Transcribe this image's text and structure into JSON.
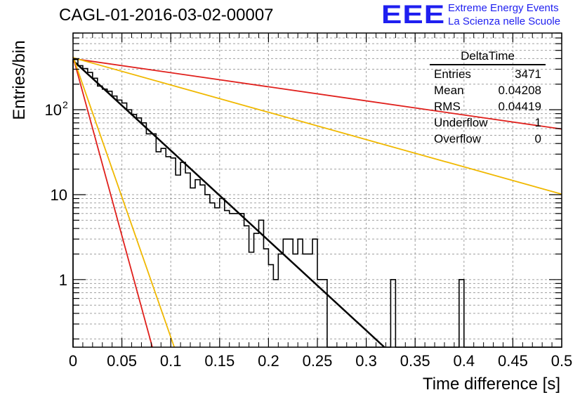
{
  "title": "CAGL-01-2016-03-02-00007",
  "logo": {
    "text": "EEE",
    "line1": "Extreme Energy Events",
    "line2": "La Scienza nelle Scuole",
    "color": "#1f1ff0"
  },
  "stats": {
    "name": "DeltaTime",
    "rows": [
      {
        "label": "Entries",
        "value": "3471"
      },
      {
        "label": "Mean",
        "value": "0.04208"
      },
      {
        "label": "RMS",
        "value": "0.04419"
      },
      {
        "label": "Underflow",
        "value": "1"
      },
      {
        "label": "Overflow",
        "value": "0"
      }
    ]
  },
  "chart_data": {
    "type": "line",
    "title": "CAGL-01-2016-03-02-00007",
    "xlabel": "Time difference [s]",
    "ylabel": "Entries/bin",
    "xlim": [
      0,
      0.5
    ],
    "ylim": [
      0.16,
      800
    ],
    "yscale": "log",
    "grid": true,
    "x_ticks": [
      "0",
      "0.05",
      "0.1",
      "0.15",
      "0.2",
      "0.25",
      "0.3",
      "0.35",
      "0.4",
      "0.45",
      "0.5"
    ],
    "y_ticks": [
      {
        "value": 1,
        "label": "1"
      },
      {
        "value": 10,
        "label": "10"
      },
      {
        "value": 100,
        "label": "10",
        "sup": "2"
      }
    ],
    "histogram": {
      "name": "DeltaTime",
      "bin_width": 0.005,
      "color": "#000000",
      "counts": [
        390,
        330,
        305,
        275,
        235,
        190,
        175,
        165,
        145,
        130,
        120,
        100,
        88,
        80,
        70,
        52,
        52,
        32,
        35,
        28,
        27,
        17,
        24,
        18,
        12,
        15,
        13,
        10,
        8,
        7,
        9,
        6.5,
        6,
        6,
        6,
        4.3,
        2.1,
        3.5,
        5,
        2.3,
        1.5,
        1,
        2,
        3,
        3,
        2,
        3,
        2,
        2,
        3,
        1,
        1,
        0,
        0,
        0,
        0,
        0,
        0,
        0,
        0,
        0,
        0,
        0,
        0,
        0,
        1,
        0,
        0,
        0,
        0,
        0,
        0,
        0,
        0,
        0,
        0,
        0,
        0,
        0,
        1,
        0,
        0,
        0,
        0,
        0,
        0,
        0,
        0,
        0,
        0,
        0,
        0,
        0,
        0,
        0,
        0,
        0,
        0,
        0,
        0
      ]
    },
    "fits": [
      {
        "color": "#000000",
        "y0": 380,
        "slope_per_s": -24.4
      },
      {
        "color": "#e0201c",
        "y0": 400,
        "slope_per_s": -3.82
      },
      {
        "color": "#f0b800",
        "y0": 410,
        "slope_per_s": -7.4
      },
      {
        "color": "#e0201c",
        "y0": 420,
        "slope_per_s": -97.0
      },
      {
        "color": "#f0b800",
        "y0": 420,
        "slope_per_s": -76.0
      }
    ]
  }
}
